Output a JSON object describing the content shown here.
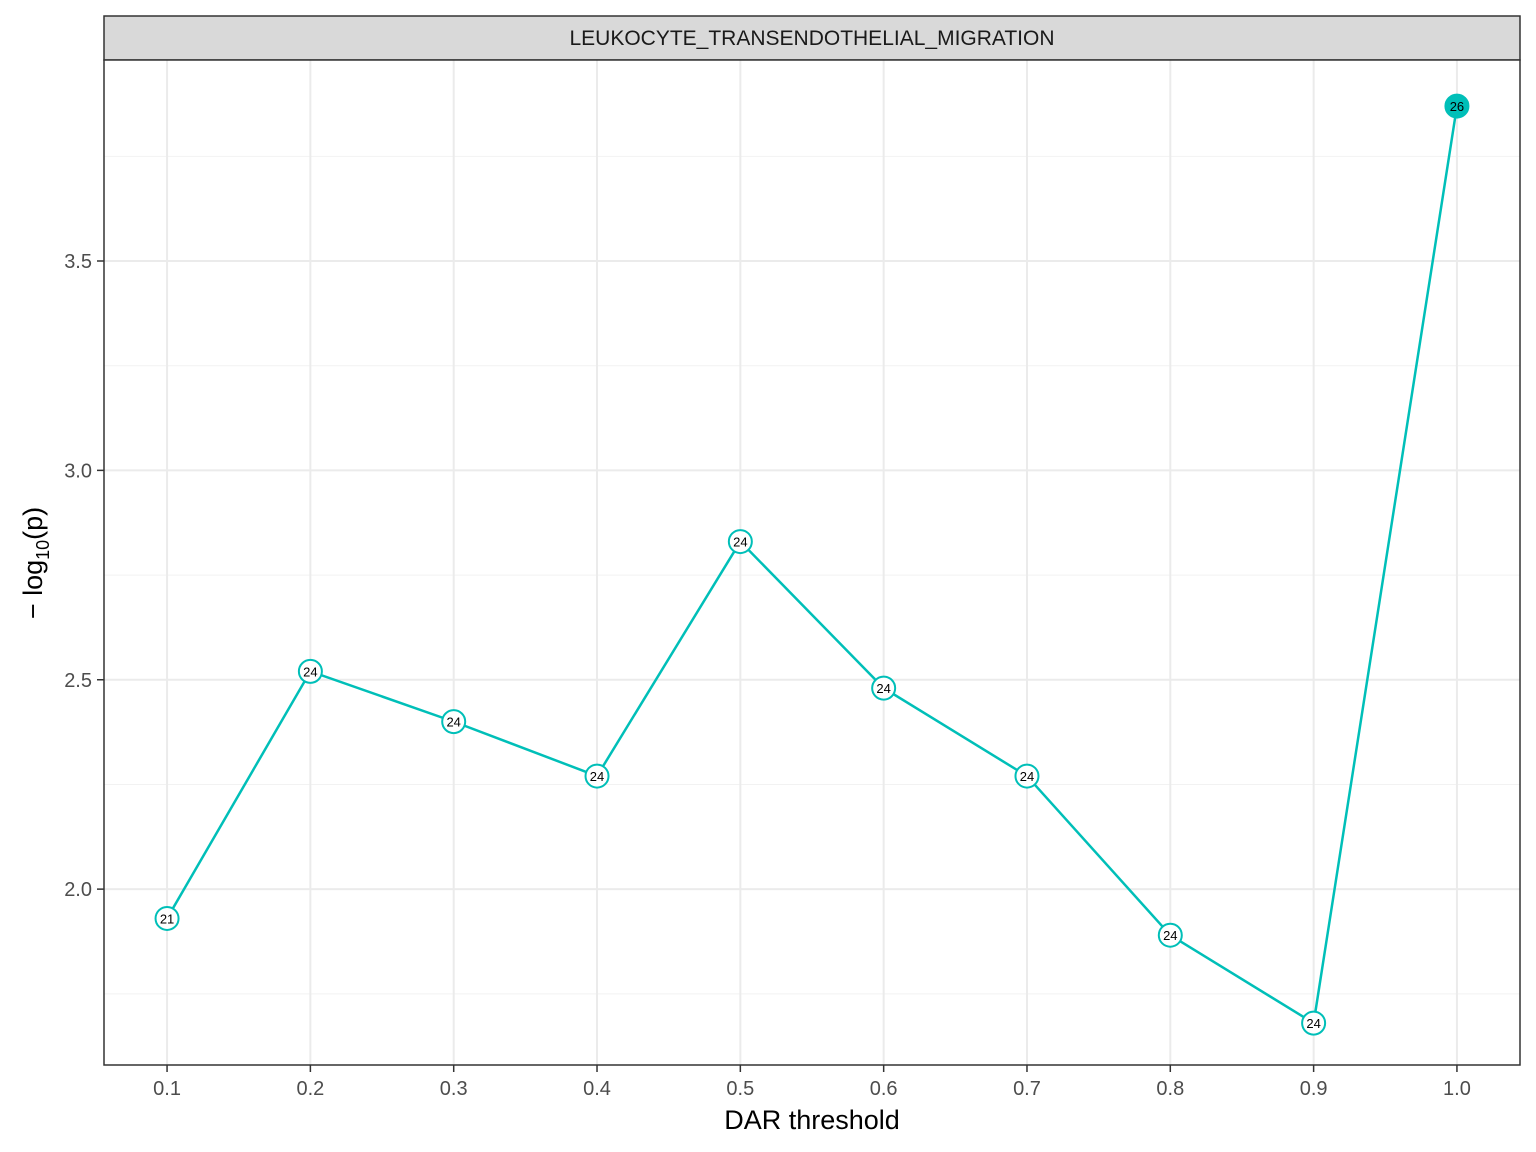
{
  "chart_data": {
    "type": "line",
    "facet_title": "LEUKOCYTE_TRANSENDOTHELIAL_MIGRATION",
    "xlabel": "DAR threshold",
    "ylabel": "− log10(p)",
    "ylabel_parts": {
      "prefix": "− log",
      "subscript": "10",
      "suffix": "(p)"
    },
    "x_ticks": [
      "0.1",
      "0.2",
      "0.3",
      "0.4",
      "0.5",
      "0.6",
      "0.7",
      "0.8",
      "0.9",
      "1.0"
    ],
    "y_ticks": [
      "2.0",
      "2.5",
      "3.0",
      "3.5"
    ],
    "y_tick_values": [
      2.0,
      2.5,
      3.0,
      3.5
    ],
    "xlim": [
      0.056,
      1.044
    ],
    "ylim": [
      1.58,
      3.98
    ],
    "grid": true,
    "color": "#00BFB8",
    "series": [
      {
        "x": [
          0.1,
          0.2,
          0.3,
          0.4,
          0.5,
          0.6,
          0.7,
          0.8,
          0.9,
          1.0
        ],
        "y": [
          1.93,
          2.52,
          2.4,
          2.27,
          2.83,
          2.48,
          2.27,
          1.89,
          1.68,
          3.87
        ],
        "labels": [
          "21",
          "24",
          "24",
          "24",
          "24",
          "24",
          "24",
          "24",
          "24",
          "26"
        ],
        "filled": [
          false,
          false,
          false,
          false,
          false,
          false,
          false,
          false,
          false,
          true
        ]
      }
    ]
  }
}
